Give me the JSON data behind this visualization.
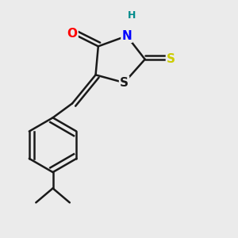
{
  "background_color": "#ebebeb",
  "atom_colors": {
    "O": "#ff0000",
    "N": "#0000ff",
    "S_thiol": "#cccc00",
    "S_ring": "#1a1a1a",
    "H": "#008b8b",
    "C": "#1a1a1a"
  },
  "bond_color": "#1a1a1a",
  "bond_width": 1.8,
  "font_size_atom": 11,
  "font_size_small": 9
}
